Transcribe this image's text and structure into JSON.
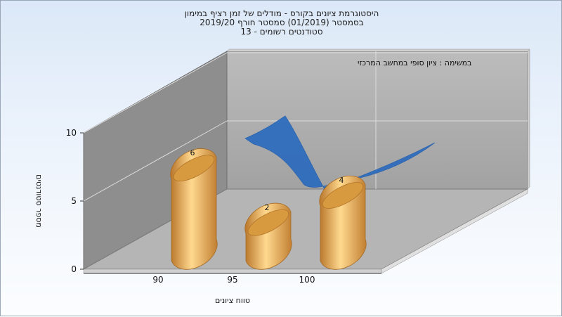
{
  "chart_data": {
    "type": "bar",
    "title_lines": [
      "היסטוגרמת ציונים בקורס - מודלים של זמן רציף במימון",
      "בסמסטר  (01/2019)  סמסטר חורף 2019/20",
      "סטודנטים רשומים - 13"
    ],
    "annotation": "במשימה : ציון סופי במחשב המרכזי",
    "xlabel": "טווח ציונים",
    "ylabel": "מספר סטודנטים",
    "categories": [
      "90",
      "95",
      "100"
    ],
    "values": [
      6,
      2,
      4
    ],
    "data_labels": [
      "6",
      "2",
      "4"
    ],
    "yticks": [
      "0",
      "5",
      "10"
    ],
    "ylim": [
      0,
      10
    ],
    "grid": true,
    "colors": {
      "bar": "#e3a64a",
      "curve": "#2f6dbe",
      "wall": "#a8a8a8",
      "floor": "#b4b4b4"
    }
  }
}
